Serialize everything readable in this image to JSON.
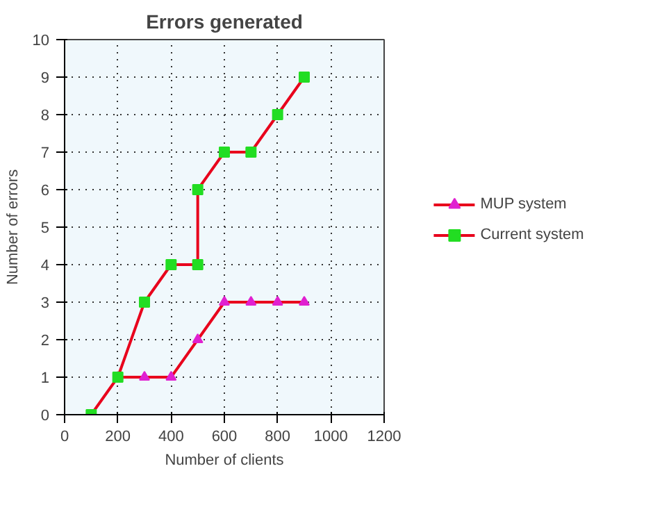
{
  "chart_data": {
    "type": "line",
    "title": "Errors generated",
    "xlabel": "Number of clients",
    "ylabel": "Number of errors",
    "xlim": [
      0,
      1200
    ],
    "xticks": [
      0,
      200,
      400,
      600,
      800,
      1000,
      1200
    ],
    "ylim": [
      0,
      10
    ],
    "yticks": [
      0,
      1,
      2,
      3,
      4,
      5,
      6,
      7,
      8,
      9,
      10
    ],
    "grid": true,
    "legend": "right",
    "line_style": "solid",
    "series": [
      {
        "name": "MUP system",
        "color": "#e8001c",
        "marker": "triangle",
        "colors": [
          "#e020d0",
          "#e020d0",
          "#e020d0",
          "#e020d0",
          "#e020d0",
          "#e020d0",
          "#e020d0",
          "#e020d0"
        ],
        "x": [
          200,
          300,
          400,
          500,
          600,
          700,
          800,
          900
        ],
        "values": [
          1,
          1,
          1,
          2,
          3,
          3,
          3,
          3
        ]
      },
      {
        "name": "Current system",
        "color": "#e8001c",
        "marker": "square",
        "colors": [
          "#22dd22",
          "#22dd22",
          "#22dd22",
          "#22dd22",
          "#22dd22",
          "#22dd22",
          "#22dd22",
          "#22dd22",
          "#22dd22",
          "#22dd22"
        ],
        "x": [
          100,
          200,
          300,
          400,
          500,
          500,
          600,
          700,
          800,
          900
        ],
        "values": [
          0,
          1,
          3,
          4,
          4,
          6,
          7,
          7,
          8,
          9
        ]
      }
    ]
  }
}
